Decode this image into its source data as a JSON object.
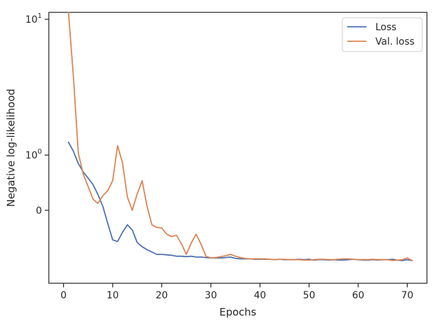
{
  "chart_data": {
    "type": "line",
    "title": "",
    "xlabel": "Epochs",
    "ylabel": "Negative log-likelihood",
    "xlim": [
      -3,
      74
    ],
    "yscale": "symlog",
    "ylim": [
      -1.5,
      11
    ],
    "grid": false,
    "legend_position": "top-right",
    "x_ticks": [
      0,
      10,
      20,
      30,
      40,
      50,
      60,
      70
    ],
    "x_tick_labels": [
      "0",
      "10",
      "20",
      "30",
      "40",
      "50",
      "60",
      "70"
    ],
    "y_ticks": [
      {
        "value": 10,
        "base": "10",
        "exp": "1"
      },
      {
        "value": 1,
        "base": "10",
        "exp": "0"
      },
      {
        "value": 0,
        "base": "0",
        "exp": ""
      }
    ],
    "series": [
      {
        "name": "Loss",
        "color": "#4c72b0",
        "x": [
          1,
          2,
          3,
          4,
          5,
          6,
          7,
          8,
          9,
          10,
          11,
          12,
          13,
          14,
          15,
          16,
          17,
          18,
          19,
          20,
          21,
          22,
          23,
          24,
          25,
          26,
          27,
          28,
          29,
          30,
          31,
          32,
          33,
          34,
          35,
          36,
          37,
          38,
          39,
          40,
          41,
          42,
          43,
          44,
          45,
          46,
          47,
          48,
          49,
          50,
          51,
          52,
          53,
          54,
          55,
          56,
          57,
          58,
          59,
          60,
          61,
          62,
          63,
          64,
          65,
          66,
          67,
          68,
          69,
          70,
          71
        ],
        "values": [
          1.35,
          1.1,
          0.8,
          0.62,
          0.5,
          0.38,
          0.22,
          0.05,
          -0.18,
          -0.45,
          -0.48,
          -0.32,
          -0.2,
          -0.28,
          -0.5,
          -0.58,
          -0.64,
          -0.69,
          -0.74,
          -0.74,
          -0.75,
          -0.76,
          -0.78,
          -0.78,
          -0.79,
          -0.78,
          -0.8,
          -0.8,
          -0.81,
          -0.82,
          -0.82,
          -0.82,
          -0.81,
          -0.8,
          -0.83,
          -0.84,
          -0.84,
          -0.84,
          -0.85,
          -0.85,
          -0.85,
          -0.85,
          -0.86,
          -0.85,
          -0.86,
          -0.86,
          -0.86,
          -0.85,
          -0.86,
          -0.85,
          -0.87,
          -0.86,
          -0.86,
          -0.87,
          -0.86,
          -0.87,
          -0.87,
          -0.86,
          -0.85,
          -0.86,
          -0.87,
          -0.87,
          -0.86,
          -0.87,
          -0.86,
          -0.86,
          -0.85,
          -0.87,
          -0.88,
          -0.86,
          -0.88
        ]
      },
      {
        "name": "Val. loss",
        "color": "#dd8452",
        "x": [
          1,
          2,
          3,
          4,
          5,
          6,
          7,
          8,
          9,
          10,
          11,
          12,
          13,
          14,
          15,
          16,
          17,
          18,
          19,
          20,
          21,
          22,
          23,
          24,
          25,
          26,
          27,
          28,
          29,
          30,
          31,
          32,
          33,
          34,
          35,
          36,
          37,
          38,
          39,
          40,
          41,
          42,
          43,
          44,
          45,
          46,
          47,
          48,
          49,
          50,
          51,
          52,
          53,
          54,
          55,
          56,
          57,
          58,
          59,
          60,
          61,
          62,
          63,
          64,
          65,
          66,
          67,
          68,
          69,
          70,
          71
        ],
        "values": [
          11,
          4.4,
          1.05,
          0.58,
          0.35,
          0.15,
          0.09,
          0.2,
          0.28,
          0.45,
          1.25,
          0.82,
          0.18,
          0.0,
          0.23,
          0.45,
          0.05,
          -0.2,
          -0.24,
          -0.25,
          -0.35,
          -0.39,
          -0.37,
          -0.52,
          -0.74,
          -0.51,
          -0.35,
          -0.53,
          -0.78,
          -0.82,
          -0.81,
          -0.79,
          -0.77,
          -0.74,
          -0.78,
          -0.81,
          -0.83,
          -0.84,
          -0.84,
          -0.84,
          -0.84,
          -0.85,
          -0.86,
          -0.85,
          -0.85,
          -0.86,
          -0.86,
          -0.86,
          -0.87,
          -0.87,
          -0.86,
          -0.85,
          -0.85,
          -0.86,
          -0.86,
          -0.85,
          -0.84,
          -0.84,
          -0.85,
          -0.86,
          -0.86,
          -0.86,
          -0.85,
          -0.86,
          -0.86,
          -0.86,
          -0.88,
          -0.87,
          -0.86,
          -0.82,
          -0.88
        ]
      }
    ]
  }
}
